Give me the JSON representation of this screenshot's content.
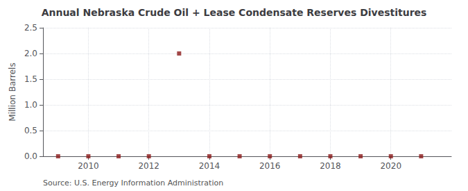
{
  "chart_data": {
    "type": "scatter",
    "title": "Annual Nebraska Crude Oil + Lease Condensate Reserves Divestitures",
    "ylabel": "Million Barrels",
    "annotation": "Source: U.S. Energy Information Administration",
    "x": [
      2009,
      2010,
      2011,
      2012,
      2013,
      2014,
      2015,
      2016,
      2017,
      2018,
      2019,
      2020,
      2021
    ],
    "values": [
      0.0,
      0.0,
      0.0,
      0.0,
      2.0,
      0.0,
      0.0,
      0.0,
      0.0,
      0.0,
      0.0,
      0.0,
      0.0
    ],
    "color": "#8b1a1a",
    "marker": "square",
    "xlim": [
      2008.5,
      2022
    ],
    "xticks": [
      2010,
      2012,
      2014,
      2016,
      2018,
      2020
    ],
    "ylim": [
      0,
      2.5
    ],
    "yticks": [
      {
        "value": 0,
        "label": "0.0"
      },
      0.5,
      {
        "value": 1,
        "label": "1.0"
      },
      1.5,
      {
        "value": 2,
        "label": "2.0"
      },
      2.5
    ],
    "grid": true
  }
}
